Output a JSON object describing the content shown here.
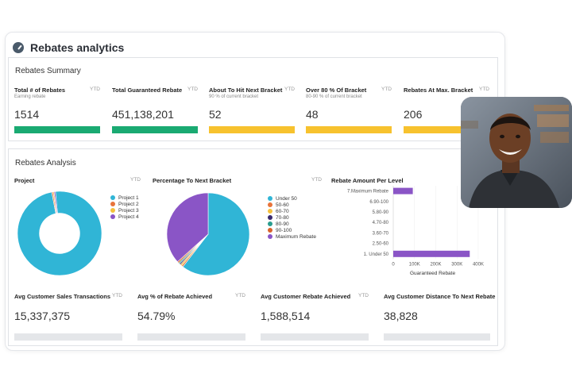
{
  "app": {
    "title": "Rebates analytics"
  },
  "summary": {
    "title": "Rebates Summary",
    "kpis": [
      {
        "name": "Total # of Rebates",
        "sub": "Earning rebate",
        "ytd": "YTD",
        "value": "1514",
        "color": "#1aaa72"
      },
      {
        "name": "Total Guaranteed Rebate",
        "sub": "",
        "ytd": "YTD",
        "value": "451,138,201",
        "color": "#1aaa72"
      },
      {
        "name": "About To Hit Next Bracket",
        "sub": "90 % of current bracket",
        "ytd": "YTD",
        "value": "52",
        "color": "#f7c22e"
      },
      {
        "name": "Over 80 % Of Bracket",
        "sub": "80-90 % of current bracket",
        "ytd": "YTD",
        "value": "48",
        "color": "#f7c22e"
      },
      {
        "name": "Rebates At Max. Bracket",
        "sub": "",
        "ytd": "YTD",
        "value": "206",
        "color": "#f7c22e"
      }
    ]
  },
  "analysis": {
    "title": "Rebates Analysis",
    "project": {
      "title": "Project",
      "ytd": "YTD",
      "legend": [
        {
          "label": "Project 1",
          "color": "#30b5d6"
        },
        {
          "label": "Project 2",
          "color": "#e8743b"
        },
        {
          "label": "Project 3",
          "color": "#f5c13d"
        },
        {
          "label": "Project 4",
          "color": "#8a55c6"
        }
      ]
    },
    "percentage": {
      "title": "Percentage To Next Bracket",
      "ytd": "YTD",
      "legend": [
        {
          "label": "Under 50",
          "color": "#30b5d6"
        },
        {
          "label": "50-60",
          "color": "#e8743b"
        },
        {
          "label": "60-70",
          "color": "#f5c13d"
        },
        {
          "label": "70-80",
          "color": "#3a2a6e"
        },
        {
          "label": "80-90",
          "color": "#2a9d8f"
        },
        {
          "label": "90-100",
          "color": "#d9622b"
        },
        {
          "label": "Maximum Rebate",
          "color": "#8a55c6"
        }
      ]
    },
    "rebate_amount": {
      "title": "Rebate Amount Per Level",
      "bar_color": "#8a55c6",
      "xlabel": "Guaranteed Rebate"
    },
    "averages": [
      {
        "name": "Avg  Customer Sales Transactions",
        "ytd": "YTD",
        "value": "15,337,375"
      },
      {
        "name": "Avg % of Rebate Achieved",
        "ytd": "YTD",
        "value": "54.79%"
      },
      {
        "name": "Avg  Customer Rebate Achieved",
        "ytd": "YTD",
        "value": "1,588,514"
      },
      {
        "name": "Avg  Customer Distance To Next Rebate",
        "ytd": "",
        "value": "38,828"
      }
    ]
  },
  "chart_data": [
    {
      "type": "pie",
      "title": "Project",
      "categories": [
        "Project 1",
        "Project 2",
        "Project 3",
        "Project 4"
      ],
      "values": [
        98.6,
        0.5,
        0.4,
        0.5
      ],
      "donut": true
    },
    {
      "type": "pie",
      "title": "Percentage To Next Bracket",
      "categories": [
        "Under 50",
        "50-60",
        "60-70",
        "70-80",
        "80-90",
        "90-100",
        "Maximum Rebate"
      ],
      "values": [
        60.5,
        0.6,
        0.6,
        0.5,
        0.5,
        0.6,
        36.7
      ]
    },
    {
      "type": "bar",
      "orientation": "horizontal",
      "title": "Rebate Amount Per Level",
      "categories": [
        "7.Maximum Rebate",
        "6.90-100",
        "5.80-90",
        "4.70-80",
        "3.60-70",
        "2.50-60",
        "1. Under 50"
      ],
      "values": [
        92000,
        0,
        0,
        0,
        0,
        0,
        360000
      ],
      "xlabel": "Guaranteed Rebate",
      "xticks": [
        "0",
        "100K",
        "200K",
        "300K",
        "400K"
      ],
      "xlim": [
        0,
        430000
      ]
    }
  ]
}
